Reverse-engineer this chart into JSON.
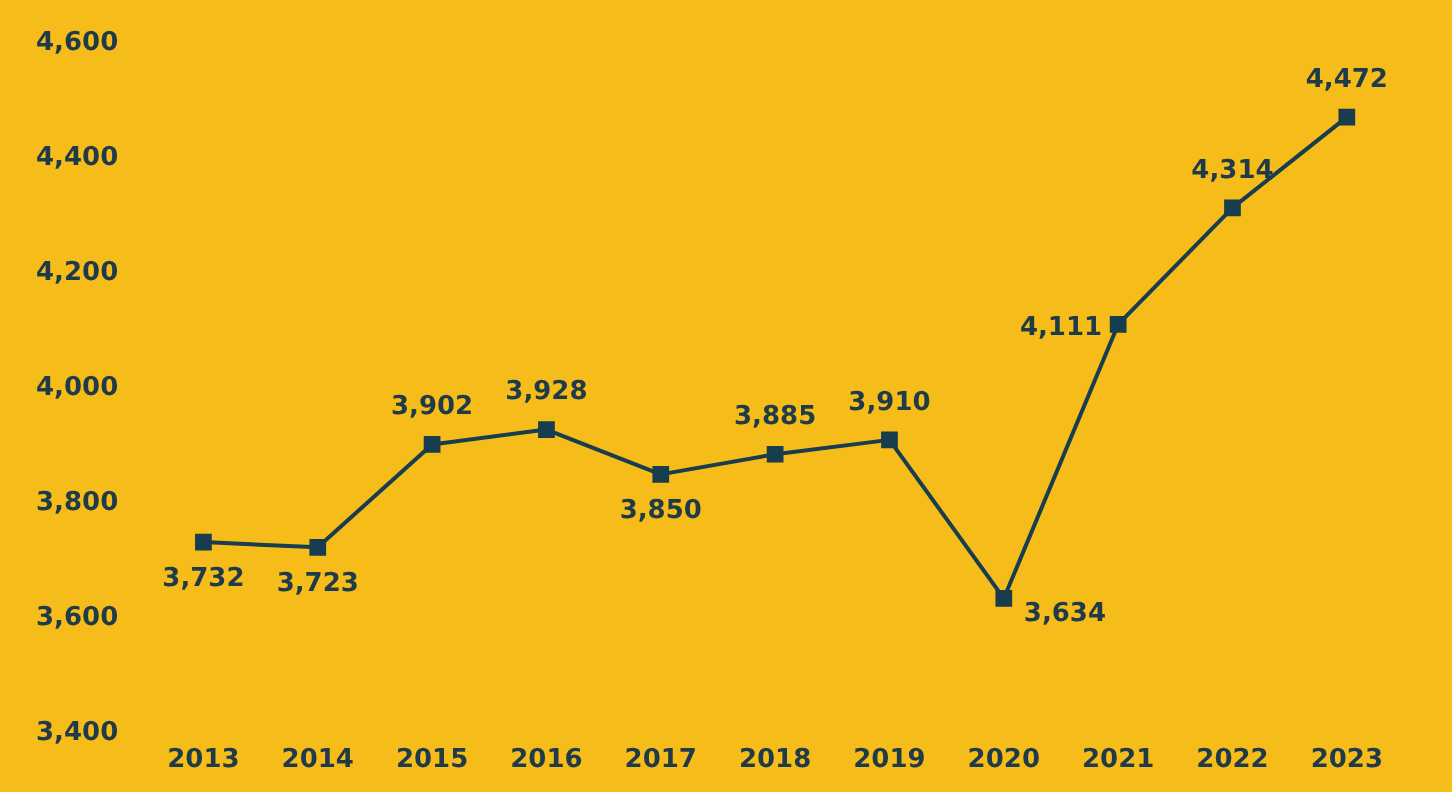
{
  "chart_data": {
    "type": "line",
    "categories": [
      "2013",
      "2014",
      "2015",
      "2016",
      "2017",
      "2018",
      "2019",
      "2020",
      "2021",
      "2022",
      "2023"
    ],
    "series": [
      {
        "color": "#173d4f",
        "values": [
          3732,
          3723,
          3902,
          3928,
          3850,
          3885,
          3910,
          3634,
          4111,
          4314,
          4472
        ],
        "value_labels": [
          "3,732",
          "3,723",
          "3,902",
          "3,928",
          "3,850",
          "3,885",
          "3,910",
          "3,634",
          "4,111",
          "4,314",
          "4,472"
        ]
      }
    ],
    "ylim": [
      3400,
      4600
    ],
    "yticks": [
      {
        "value": 3400,
        "label": "3,400"
      },
      {
        "value": 3600,
        "label": "3,600"
      },
      {
        "value": 3800,
        "label": "3,800"
      },
      {
        "value": 4000,
        "label": "4,000"
      },
      {
        "value": 4200,
        "label": "4,200"
      },
      {
        "value": 4400,
        "label": "4,400"
      },
      {
        "value": 4600,
        "label": "4,600"
      }
    ],
    "grid": false,
    "legend": false,
    "marker": "square",
    "line_style": "solid"
  }
}
